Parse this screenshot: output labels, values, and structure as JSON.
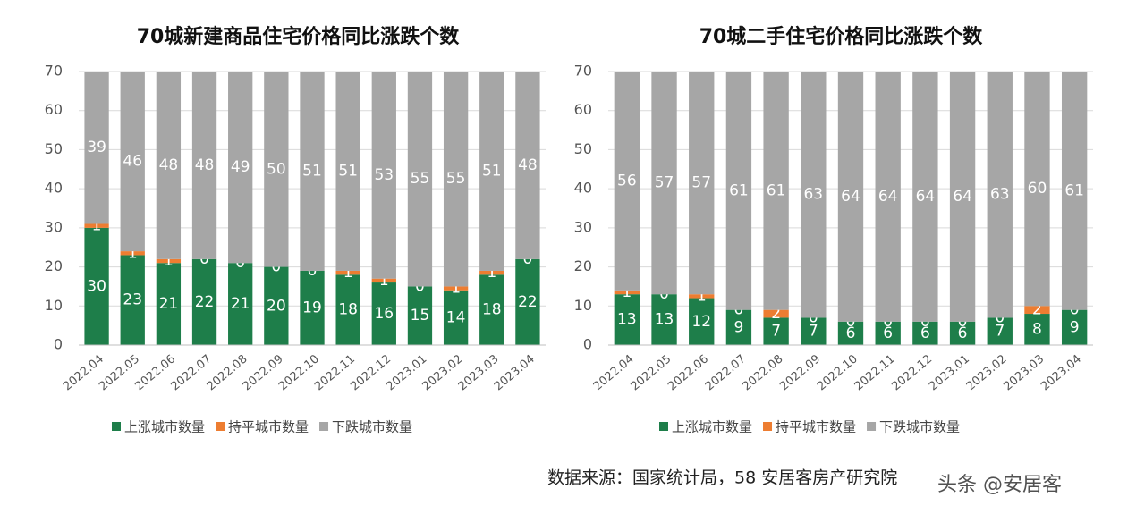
{
  "chart_data": [
    {
      "type": "stacked_bar",
      "title": "70城新建商品住宅价格同比涨跌个数",
      "categories": [
        "2022.04",
        "2022.05",
        "2022.06",
        "2022.07",
        "2022.08",
        "2022.09",
        "2022.10",
        "2022.11",
        "2022.12",
        "2023.01",
        "2023.02",
        "2023.03",
        "2023.04"
      ],
      "series": [
        {
          "name": "上涨城市数量",
          "color": "#1e7e4a",
          "values": [
            30,
            23,
            21,
            22,
            21,
            20,
            19,
            18,
            16,
            15,
            14,
            18,
            22
          ]
        },
        {
          "name": "持平城市数量",
          "color": "#ed7d31",
          "values": [
            1,
            1,
            1,
            0,
            0,
            0,
            0,
            1,
            1,
            0,
            1,
            1,
            0
          ]
        },
        {
          "name": "下跌城市数量",
          "color": "#a6a6a6",
          "values": [
            39,
            46,
            48,
            48,
            49,
            50,
            51,
            51,
            53,
            55,
            55,
            51,
            48
          ]
        }
      ],
      "ylim": [
        0,
        70
      ],
      "yticks": [
        0,
        10,
        20,
        30,
        40,
        50,
        60,
        70
      ],
      "grid": true,
      "legend": "bottom"
    },
    {
      "type": "stacked_bar",
      "title": "70城二手住宅价格同比涨跌个数",
      "categories": [
        "2022.04",
        "2022.05",
        "2022.06",
        "2022.07",
        "2022.08",
        "2022.09",
        "2022.10",
        "2022.11",
        "2022.12",
        "2023.01",
        "2023.02",
        "2023.03",
        "2023.04"
      ],
      "series": [
        {
          "name": "上涨城市数量",
          "color": "#1e7e4a",
          "values": [
            13,
            13,
            12,
            9,
            7,
            7,
            6,
            6,
            6,
            6,
            7,
            8,
            9
          ]
        },
        {
          "name": "持平城市数量",
          "color": "#ed7d31",
          "values": [
            1,
            0,
            1,
            0,
            2,
            0,
            0,
            0,
            0,
            0,
            0,
            2,
            0
          ]
        },
        {
          "name": "下跌城市数量",
          "color": "#a6a6a6",
          "values": [
            56,
            57,
            57,
            61,
            61,
            63,
            64,
            64,
            64,
            64,
            63,
            60,
            61
          ]
        }
      ],
      "ylim": [
        0,
        70
      ],
      "yticks": [
        0,
        10,
        20,
        30,
        40,
        50,
        60,
        70
      ],
      "grid": true,
      "legend": "bottom"
    }
  ],
  "source": "数据来源：国家统计局，58 安居客房产研究院",
  "watermark": "头条 @安居客"
}
